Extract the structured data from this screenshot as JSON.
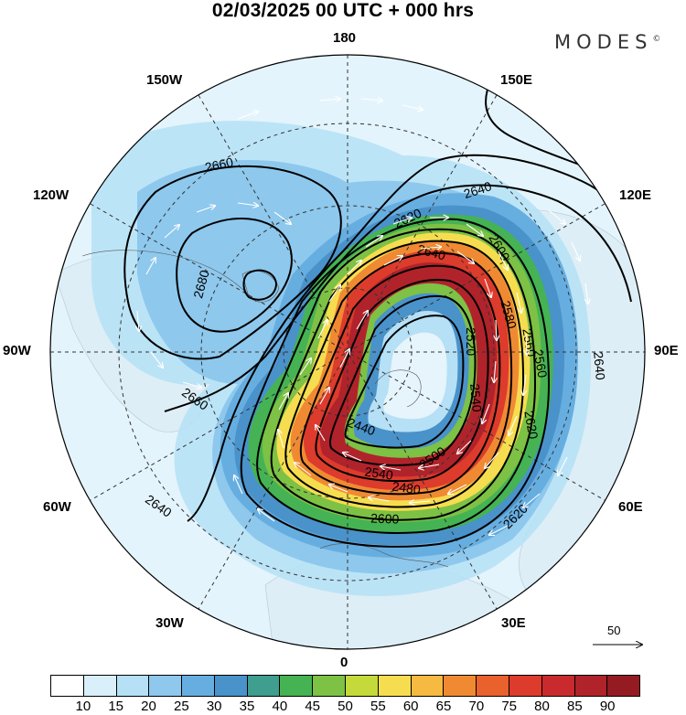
{
  "title": "02/03/2025  00 UTC  + 000 hrs",
  "brand": "MODES",
  "brand_mark": "©",
  "longitude_labels": {
    "top": "180",
    "nne": "150E",
    "ne": "120E",
    "e": "90E",
    "se": "60E",
    "sse": "30E",
    "bottom": "0",
    "ssw": "30W",
    "sw": "60W",
    "w": "90W",
    "nw": "120W",
    "nnw": "150W"
  },
  "contour_labels": [
    "2660",
    "2680",
    "2660",
    "2640",
    "2640",
    "2620",
    "2600",
    "2640",
    "2580",
    "2560",
    "2520",
    "2540",
    "2480",
    "2500",
    "2440",
    "2620",
    "2620",
    "2540",
    "2640",
    "2600",
    "2560"
  ],
  "reference_vector": {
    "label": "50"
  },
  "colorbar": {
    "colors": [
      "#ffffff",
      "#d9f0fb",
      "#b5e0f6",
      "#8ec8ed",
      "#67aee0",
      "#4a92ca",
      "#3f9e8e",
      "#45b353",
      "#7dc145",
      "#c4da3a",
      "#f6dd4f",
      "#f6b941",
      "#f08a32",
      "#e9612d",
      "#dd3b2c",
      "#c82a2e",
      "#b1232b",
      "#941b22"
    ],
    "labels": [
      "10",
      "15",
      "20",
      "25",
      "30",
      "35",
      "40",
      "45",
      "50",
      "55",
      "60",
      "65",
      "70",
      "75",
      "80",
      "85",
      "90"
    ]
  }
}
